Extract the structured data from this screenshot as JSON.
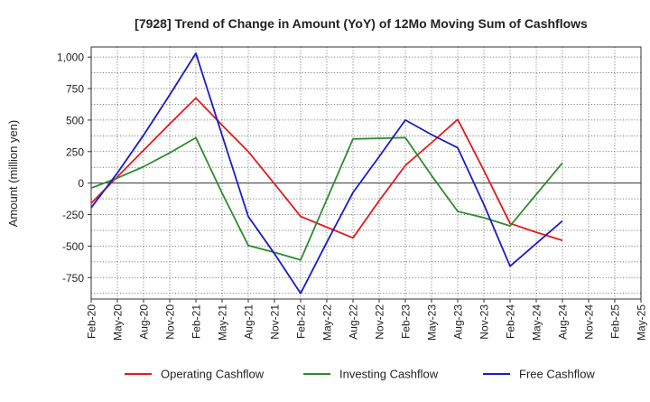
{
  "chart_data": {
    "type": "line",
    "title": "[7928]  Trend of Change in Amount (YoY) of 12Mo Moving Sum of Cashflows",
    "xlabel": "",
    "ylabel": "Amount (million yen)",
    "ylim": [
      -920,
      1080
    ],
    "yticks": [
      -750,
      -500,
      -250,
      0,
      250,
      500,
      750,
      1000
    ],
    "ytick_labels": [
      "-750",
      "-500",
      "-250",
      "0",
      "250",
      "500",
      "750",
      "1,000"
    ],
    "categories": [
      "Feb-20",
      "May-20",
      "Aug-20",
      "Nov-20",
      "Feb-21",
      "May-21",
      "Aug-21",
      "Nov-21",
      "Feb-22",
      "May-22",
      "Aug-22",
      "Nov-22",
      "Feb-23",
      "May-23",
      "Aug-23",
      "Nov-23",
      "Feb-24",
      "May-24",
      "Aug-24",
      "Nov-24",
      "Feb-25",
      "May-25"
    ],
    "grid": true,
    "legend_position": "bottom",
    "series": [
      {
        "name": "Operating Cashflow",
        "color": "#e41a1c",
        "values": [
          -160,
          50,
          260,
          470,
          675,
          460,
          250,
          -5,
          -265,
          -350,
          -435,
          -140,
          140,
          320,
          505,
          100,
          -320,
          -390,
          -455,
          null,
          null,
          null
        ]
      },
      {
        "name": "Investing Cashflow",
        "color": "#2e8b2e",
        "values": [
          -40,
          40,
          130,
          240,
          360,
          -80,
          -495,
          -550,
          -610,
          -130,
          350,
          355,
          360,
          60,
          -225,
          -275,
          -340,
          -90,
          160,
          null,
          null,
          null
        ]
      },
      {
        "name": "Free Cashflow",
        "color": "#1a1acc",
        "values": [
          -195,
          80,
          380,
          700,
          1030,
          380,
          -265,
          -560,
          -875,
          -470,
          -75,
          210,
          500,
          385,
          280,
          -170,
          -660,
          -480,
          -300,
          null,
          null,
          null
        ]
      }
    ]
  }
}
